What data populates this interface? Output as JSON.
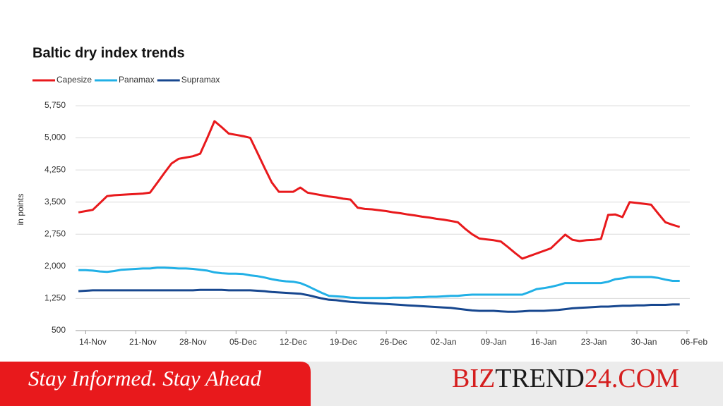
{
  "chart_data": {
    "type": "line",
    "title": "Baltic dry index trends",
    "y_label": "in points",
    "categories": [
      null,
      null,
      null,
      "14-Nov",
      null,
      null,
      null,
      null,
      null,
      null,
      "21-Nov",
      null,
      null,
      null,
      null,
      null,
      null,
      "28-Nov",
      null,
      null,
      null,
      null,
      null,
      null,
      "05-Dec",
      null,
      null,
      null,
      null,
      null,
      null,
      "12-Dec",
      null,
      null,
      null,
      null,
      null,
      null,
      "19-Dec",
      null,
      null,
      null,
      null,
      null,
      null,
      "26-Dec",
      null,
      null,
      null,
      null,
      null,
      null,
      "02-Jan",
      null,
      null,
      null,
      null,
      null,
      null,
      "09-Jan",
      null,
      null,
      null,
      null,
      null,
      null,
      "16-Jan",
      null,
      null,
      null,
      null,
      null,
      null,
      "23-Jan",
      null,
      null,
      null,
      null,
      null,
      null,
      "30-Jan",
      null,
      null,
      null,
      null,
      null,
      null,
      "06-Feb"
    ],
    "series": [
      {
        "name": "Capesize",
        "color": "#e8191c",
        "values": [
          null,
          3260,
          3290,
          3320,
          3480,
          3640,
          3660,
          3670,
          3680,
          3690,
          3700,
          3720,
          3950,
          4180,
          4400,
          4510,
          4540,
          4570,
          4630,
          5000,
          5390,
          5250,
          5100,
          5070,
          5040,
          5000,
          4650,
          4300,
          3960,
          3740,
          3740,
          3740,
          3840,
          3720,
          3690,
          3660,
          3630,
          3610,
          3580,
          3560,
          3370,
          3340,
          3330,
          3310,
          3290,
          3260,
          3240,
          3210,
          3190,
          3160,
          3140,
          3110,
          3090,
          3060,
          3030,
          2880,
          2750,
          2650,
          2630,
          2610,
          2580,
          2450,
          2310,
          2180,
          2240,
          2300,
          2360,
          2420,
          2580,
          2740,
          2620,
          2590,
          2610,
          2620,
          2640,
          3200,
          3210,
          3150,
          3500,
          3480,
          3460,
          3440,
          3230,
          3030,
          2970,
          2920,
          null,
          null
        ]
      },
      {
        "name": "Panamax",
        "color": "#21b0e6",
        "values": [
          null,
          1910,
          1910,
          1900,
          1880,
          1870,
          1890,
          1920,
          1930,
          1940,
          1950,
          1950,
          1970,
          1970,
          1960,
          1950,
          1950,
          1940,
          1920,
          1900,
          1860,
          1840,
          1830,
          1830,
          1820,
          1790,
          1770,
          1740,
          1700,
          1670,
          1650,
          1640,
          1610,
          1540,
          1460,
          1380,
          1310,
          1300,
          1290,
          1270,
          1260,
          1260,
          1260,
          1260,
          1260,
          1270,
          1270,
          1270,
          1280,
          1280,
          1290,
          1290,
          1300,
          1310,
          1310,
          1330,
          1340,
          1340,
          1340,
          1340,
          1340,
          1340,
          1340,
          1340,
          1400,
          1470,
          1490,
          1520,
          1560,
          1610,
          1610,
          1610,
          1610,
          1610,
          1610,
          1640,
          1700,
          1720,
          1750,
          1750,
          1750,
          1750,
          1730,
          1690,
          1660,
          1660,
          null,
          null
        ]
      },
      {
        "name": "Supramax",
        "color": "#17478f",
        "values": [
          null,
          1420,
          1430,
          1440,
          1440,
          1440,
          1440,
          1440,
          1440,
          1440,
          1440,
          1440,
          1440,
          1440,
          1440,
          1440,
          1440,
          1440,
          1450,
          1450,
          1450,
          1450,
          1440,
          1440,
          1440,
          1440,
          1430,
          1420,
          1400,
          1390,
          1380,
          1370,
          1360,
          1330,
          1290,
          1250,
          1220,
          1210,
          1190,
          1170,
          1160,
          1150,
          1140,
          1130,
          1120,
          1110,
          1100,
          1090,
          1080,
          1070,
          1060,
          1050,
          1040,
          1030,
          1010,
          990,
          970,
          960,
          960,
          960,
          950,
          940,
          940,
          950,
          960,
          960,
          960,
          970,
          980,
          1000,
          1020,
          1030,
          1040,
          1050,
          1060,
          1060,
          1070,
          1080,
          1080,
          1090,
          1090,
          1100,
          1100,
          1100,
          1110,
          1110,
          null,
          null
        ]
      }
    ],
    "ylim": [
      500,
      5750
    ],
    "yticks": [
      500,
      {
        "value": 1250,
        "label": "1,250"
      },
      {
        "value": 2000,
        "label": "2,000"
      },
      {
        "value": 2750,
        "label": "2,750"
      },
      {
        "value": 3500,
        "label": "3,500"
      },
      {
        "value": 4250,
        "label": "4,250"
      },
      {
        "value": 5000,
        "label": "5,000"
      },
      {
        "value": 5750,
        "label": "5,750"
      }
    ],
    "grid": true,
    "legend": "top-left"
  },
  "banner": {
    "tagline": "Stay Informed. Stay Ahead",
    "brand": [
      "BIZ",
      "TREND",
      "24.COM"
    ]
  }
}
